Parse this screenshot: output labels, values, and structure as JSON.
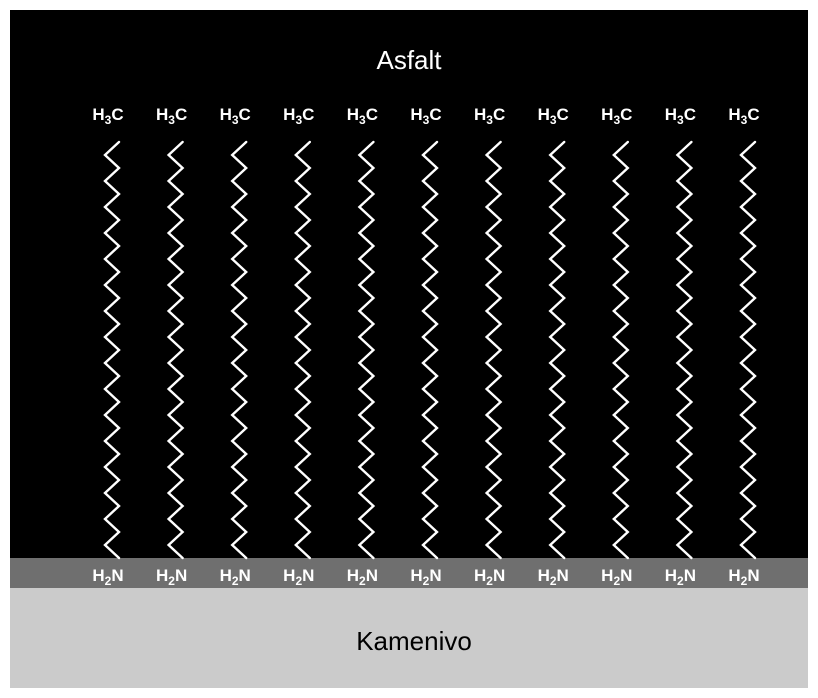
{
  "title_top": "Asfalt",
  "title_bottom": "Kamenivo",
  "molecule_count": 11,
  "head_group": {
    "base": "H",
    "sub": "3",
    "tail": "C"
  },
  "foot_group": {
    "base": "H",
    "sub": "2",
    "tail": "N"
  },
  "colors": {
    "asphalt_layer": "#000000",
    "interface_layer": "#6f6f6f",
    "aggregate_layer": "#cbcbcb",
    "chain": "#ffffff",
    "text_light": "#ffffff",
    "text_dark": "#000000"
  }
}
